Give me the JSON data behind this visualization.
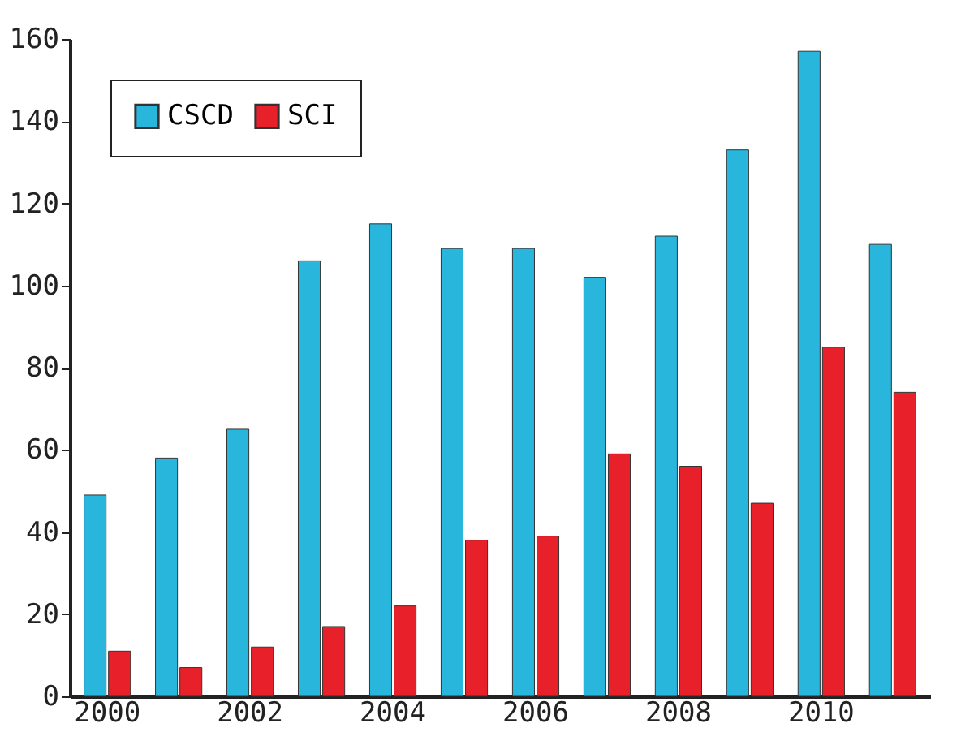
{
  "chart_data": {
    "type": "bar",
    "categories": [
      "2000",
      null,
      "2002",
      null,
      "2004",
      null,
      "2006",
      null,
      "2008",
      null,
      "2010",
      null
    ],
    "series": [
      {
        "name": "CSCD",
        "color": "#29b6dd",
        "values": [
          49,
          58,
          65,
          106,
          115,
          109,
          109,
          102,
          112,
          133,
          157,
          110
        ]
      },
      {
        "name": "SCI",
        "color": "#e8202a",
        "values": [
          11,
          7,
          12,
          17,
          22,
          38,
          39,
          59,
          56,
          47,
          85,
          74
        ]
      }
    ],
    "ylim": [
      0,
      160
    ],
    "yticks": [
      0,
      20,
      40,
      60,
      80,
      100,
      120,
      140,
      160
    ],
    "grid": false,
    "legend": "top left"
  }
}
